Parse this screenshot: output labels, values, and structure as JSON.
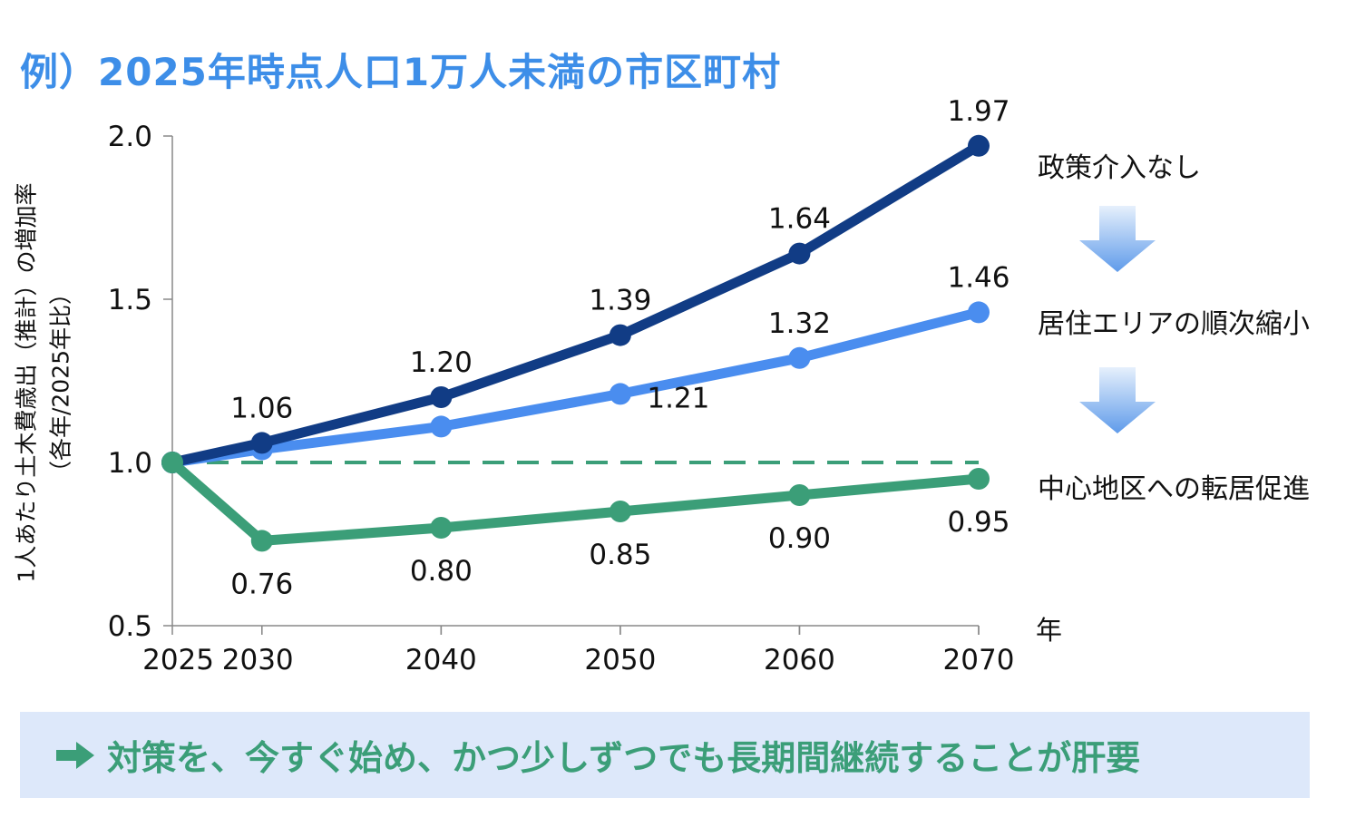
{
  "title": "例）2025年時点人口1万人未満の市区町村",
  "colors": {
    "title": "#3d8ee8",
    "no_policy": "#113c85",
    "shrink": "#4a8def",
    "relocation": "#3b9e78",
    "banner_bg": "#dde8fa",
    "banner_text": "#3b9e78"
  },
  "chart_data": {
    "type": "line",
    "title": "",
    "xlabel": "年",
    "ylabel": [
      "1人あたり土木費歳出（推計）の増加率",
      "（各年/2025年比）"
    ],
    "x": [
      2025,
      2030,
      2040,
      2050,
      2060,
      2070
    ],
    "xticks": [
      "2025",
      "2030",
      "2040",
      "2050",
      "2060",
      "2070"
    ],
    "xlim": [
      2025,
      2070
    ],
    "ylim": [
      0.5,
      2.0
    ],
    "yticks": [
      "0.5",
      "1.0",
      "1.5",
      "2.0"
    ],
    "reference_line": 1.0,
    "series": [
      {
        "name": "政策介入なし",
        "values": [
          1.0,
          1.06,
          1.2,
          1.39,
          1.64,
          1.97
        ],
        "color": "#113c85",
        "labels": [
          "",
          "1.06",
          "1.20",
          "1.39",
          "1.64",
          "1.97"
        ]
      },
      {
        "name": "居住エリアの順次縮小",
        "values": [
          1.0,
          1.04,
          1.11,
          1.21,
          1.32,
          1.46
        ],
        "color": "#4a8def",
        "labels": [
          "",
          "",
          "",
          "1.21",
          "1.32",
          "1.46"
        ]
      },
      {
        "name": "中心地区への転居促進",
        "values": [
          1.0,
          0.76,
          0.8,
          0.85,
          0.9,
          0.95
        ],
        "color": "#3b9e78",
        "labels": [
          "",
          "0.76",
          "0.80",
          "0.85",
          "0.90",
          "0.95"
        ]
      }
    ]
  },
  "flow_arrows": [
    "down-arrow-icon",
    "down-arrow-icon"
  ],
  "banner": {
    "icon": "right-arrow-icon",
    "text": "対策を、今すぐ始め、かつ少しずつでも長期間継続することが肝要"
  }
}
